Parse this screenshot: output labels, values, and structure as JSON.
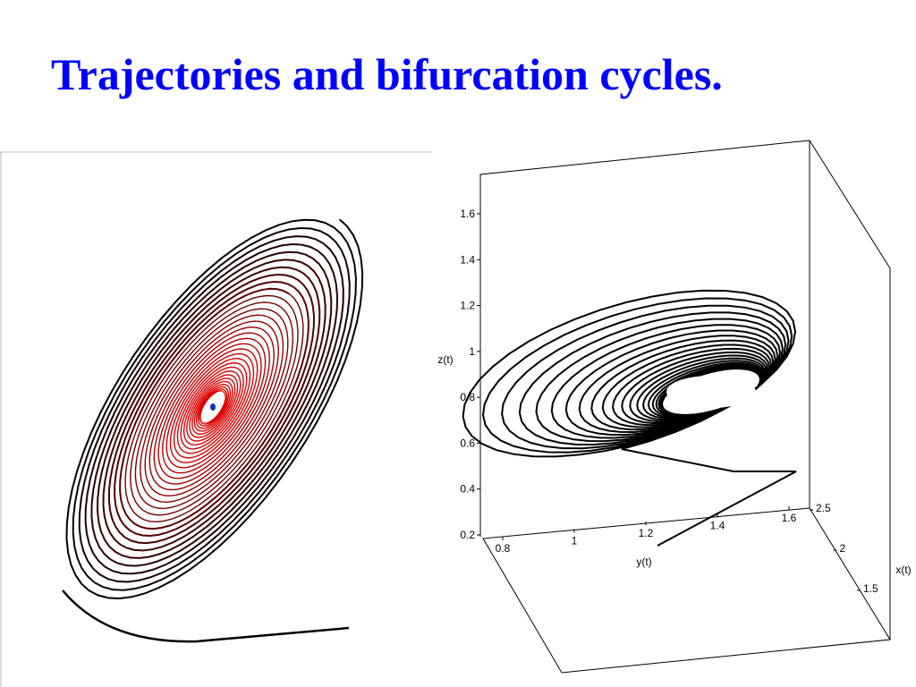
{
  "title": "Trajectories and bifurcation cycles.",
  "right_plot": {
    "z_axis": {
      "label": "z(t)",
      "ticks": [
        0.2,
        0.4,
        0.6,
        0.8,
        1,
        1.2,
        1.4,
        1.6
      ]
    },
    "y_axis": {
      "label": "y(t)",
      "ticks": [
        0.8,
        1,
        1.2,
        1.4,
        1.6
      ]
    },
    "x_axis": {
      "label": "x(t)",
      "ticks": [
        2.5,
        2,
        1.5
      ]
    }
  }
}
